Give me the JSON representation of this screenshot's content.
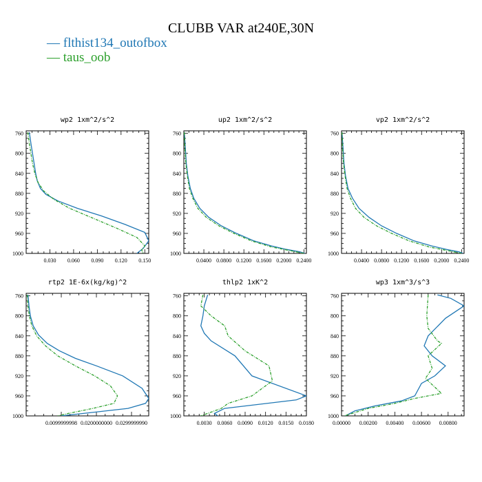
{
  "title": "CLUBB VAR at240E,30N",
  "legend": [
    {
      "name": "flthist134_outofbox",
      "color": "#1f77b4"
    },
    {
      "name": "taus_oob",
      "color": "#2ca02c"
    }
  ],
  "chart_data": [
    {
      "type": "line",
      "title": "wp2   1xm^2/s^2",
      "ylim": [
        1000,
        755
      ],
      "yticks": [
        "760",
        "800",
        "840",
        "880",
        "920",
        "960",
        "1000"
      ],
      "xlim": [
        0.0,
        0.155
      ],
      "xtick_values": [
        0.03,
        0.06,
        0.09,
        0.12,
        0.15
      ],
      "xtick_labels": [
        "0.030",
        "0.060",
        "0.090",
        "0.120",
        "0.150"
      ],
      "series": [
        {
          "name": "flthist134_outofbox",
          "style": "solid",
          "x": [
            0.004,
            0.006,
            0.008,
            0.01,
            0.012,
            0.014,
            0.018,
            0.025,
            0.04,
            0.065,
            0.095,
            0.125,
            0.15,
            0.155,
            0.148,
            0.14
          ],
          "y": [
            758,
            780,
            800,
            820,
            840,
            855,
            870,
            882,
            895,
            910,
            925,
            942,
            958,
            975,
            990,
            1000
          ]
        },
        {
          "name": "taus_oob",
          "style": "dashed",
          "x": [
            0.002,
            0.004,
            0.006,
            0.008,
            0.011,
            0.015,
            0.022,
            0.035,
            0.055,
            0.085,
            0.115,
            0.14,
            0.15,
            0.146,
            0.148
          ],
          "y": [
            758,
            780,
            800,
            820,
            840,
            858,
            875,
            892,
            910,
            930,
            950,
            968,
            985,
            993,
            1000
          ]
        }
      ]
    },
    {
      "type": "line",
      "title": "up2   1xm^2/s^2",
      "ylim": [
        1000,
        755
      ],
      "yticks": [
        "760",
        "800",
        "840",
        "880",
        "920",
        "960",
        "1000"
      ],
      "xlim": [
        0.0,
        0.245
      ],
      "xtick_values": [
        0.04,
        0.08,
        0.12,
        0.16,
        0.2,
        0.24
      ],
      "xtick_labels": [
        "0.0400",
        "0.0800",
        "0.1200",
        "0.1600",
        "0.2000",
        "0.2400"
      ],
      "series": [
        {
          "name": "flthist134_outofbox",
          "style": "solid",
          "x": [
            0.001,
            0.003,
            0.005,
            0.008,
            0.013,
            0.02,
            0.032,
            0.05,
            0.075,
            0.105,
            0.14,
            0.175,
            0.205,
            0.232,
            0.242
          ],
          "y": [
            758,
            790,
            820,
            845,
            870,
            890,
            910,
            928,
            945,
            960,
            975,
            985,
            992,
            997,
            1000
          ]
        },
        {
          "name": "taus_oob",
          "style": "dashed",
          "x": [
            0.001,
            0.002,
            0.004,
            0.007,
            0.011,
            0.018,
            0.028,
            0.045,
            0.07,
            0.1,
            0.135,
            0.175,
            0.215,
            0.24
          ],
          "y": [
            758,
            790,
            820,
            845,
            870,
            890,
            910,
            928,
            945,
            960,
            975,
            987,
            995,
            1000
          ]
        }
      ]
    },
    {
      "type": "line",
      "title": "vp2   1xm^2/s^2",
      "ylim": [
        1000,
        755
      ],
      "yticks": [
        "760",
        "800",
        "840",
        "880",
        "920",
        "960",
        "1000"
      ],
      "xlim": [
        0.0,
        0.245
      ],
      "xtick_values": [
        0.04,
        0.08,
        0.12,
        0.16,
        0.2,
        0.24
      ],
      "xtick_labels": [
        "0.0400",
        "0.0800",
        "0.1200",
        "0.1600",
        "0.2000",
        "0.2400"
      ],
      "series": [
        {
          "name": "flthist134_outofbox",
          "style": "solid",
          "x": [
            0.001,
            0.003,
            0.005,
            0.008,
            0.013,
            0.022,
            0.035,
            0.055,
            0.08,
            0.11,
            0.145,
            0.18,
            0.21,
            0.235,
            0.243
          ],
          "y": [
            758,
            790,
            820,
            845,
            870,
            890,
            910,
            928,
            945,
            960,
            975,
            985,
            992,
            997,
            1000
          ]
        },
        {
          "name": "taus_oob",
          "style": "dashed",
          "x": [
            0.001,
            0.002,
            0.004,
            0.007,
            0.011,
            0.018,
            0.028,
            0.045,
            0.07,
            0.1,
            0.135,
            0.175,
            0.215,
            0.24
          ],
          "y": [
            758,
            790,
            820,
            845,
            870,
            890,
            910,
            928,
            945,
            960,
            975,
            987,
            995,
            1000
          ]
        }
      ]
    },
    {
      "type": "line",
      "title": "rtp2   1E-6x(kg/kg)^2",
      "ylim": [
        1000,
        755
      ],
      "yticks": [
        "760",
        "800",
        "840",
        "880",
        "920",
        "960",
        "1000"
      ],
      "xlim": [
        0.0,
        0.0349
      ],
      "xtick_values": [
        0.0099999998,
        0.02,
        0.029999999
      ],
      "xtick_labels": [
        "0.0099999998",
        "0.0200000000",
        "0.0299999990"
      ],
      "series": [
        {
          "name": "flthist134_outofbox",
          "style": "solid",
          "x": [
            0.0005,
            0.0008,
            0.0012,
            0.002,
            0.0035,
            0.006,
            0.0095,
            0.014,
            0.02,
            0.0275,
            0.033,
            0.0349,
            0.034,
            0.029,
            0.01
          ],
          "y": [
            758,
            780,
            800,
            820,
            838,
            855,
            870,
            885,
            900,
            920,
            945,
            965,
            975,
            985,
            1000
          ]
        },
        {
          "name": "taus_oob",
          "style": "dashed",
          "x": [
            0.0003,
            0.0005,
            0.0009,
            0.0016,
            0.003,
            0.0055,
            0.009,
            0.014,
            0.0195,
            0.024,
            0.026,
            0.025,
            0.019,
            0.012,
            0.009
          ],
          "y": [
            758,
            780,
            800,
            820,
            840,
            860,
            880,
            900,
            920,
            940,
            960,
            975,
            985,
            995,
            1000
          ]
        }
      ]
    },
    {
      "type": "line",
      "title": "thlp2   1xK^2",
      "ylim": [
        1000,
        755
      ],
      "yticks": [
        "760",
        "800",
        "840",
        "880",
        "920",
        "960",
        "1000"
      ],
      "xlim": [
        0.0,
        0.018
      ],
      "xtick_values": [
        0.003,
        0.006,
        0.009,
        0.012,
        0.015,
        0.018
      ],
      "xtick_labels": [
        "0.0030",
        "0.0060",
        "0.0090",
        "0.0120",
        "0.0150",
        "0.0180"
      ],
      "series": [
        {
          "name": "flthist134_outofbox",
          "style": "solid",
          "x": [
            0.0035,
            0.003,
            0.0028,
            0.0025,
            0.003,
            0.004,
            0.0075,
            0.01,
            0.018,
            0.0165,
            0.006,
            0.0045,
            0.005
          ],
          "y": [
            758,
            780,
            800,
            820,
            835,
            850,
            880,
            920,
            960,
            968,
            985,
            995,
            1000
          ]
        },
        {
          "name": "taus_oob",
          "style": "dashed",
          "x": [
            0.0028,
            0.0025,
            0.004,
            0.006,
            0.0065,
            0.009,
            0.0125,
            0.013,
            0.01,
            0.0065,
            0.0055,
            0.0035,
            0.0025
          ],
          "y": [
            758,
            780,
            800,
            820,
            840,
            870,
            900,
            930,
            960,
            975,
            985,
            995,
            1000
          ]
        }
      ]
    },
    {
      "type": "line",
      "title": "wp3   1xm^3/s^3",
      "ylim": [
        1000,
        755
      ],
      "yticks": [
        "760",
        "800",
        "840",
        "880",
        "920",
        "960",
        "1000"
      ],
      "xlim": [
        0.0,
        0.0092
      ],
      "xtick_values": [
        0.0,
        0.002,
        0.004,
        0.006,
        0.008
      ],
      "xtick_labels": [
        "0.00000",
        "0.00200",
        "0.00400",
        "0.00600",
        "0.00800"
      ],
      "series": [
        {
          "name": "flthist134_outofbox",
          "style": "solid",
          "x": [
            0.0072,
            0.0082,
            0.0092,
            0.0078,
            0.0065,
            0.0062,
            0.0068,
            0.0078,
            0.007,
            0.006,
            0.0055,
            0.0045,
            0.0025,
            0.001,
            0.0003
          ],
          "y": [
            758,
            765,
            780,
            805,
            840,
            860,
            880,
            900,
            920,
            935,
            960,
            970,
            980,
            990,
            1000
          ]
        },
        {
          "name": "taus_oob",
          "style": "dashed",
          "x": [
            0.0065,
            0.0064,
            0.0065,
            0.0072,
            0.0075,
            0.0065,
            0.0068,
            0.0063,
            0.0075,
            0.0055,
            0.004,
            0.003,
            0.002,
            0.0002
          ],
          "y": [
            758,
            800,
            825,
            850,
            855,
            880,
            905,
            925,
            955,
            965,
            975,
            980,
            985,
            1000
          ]
        }
      ]
    }
  ]
}
